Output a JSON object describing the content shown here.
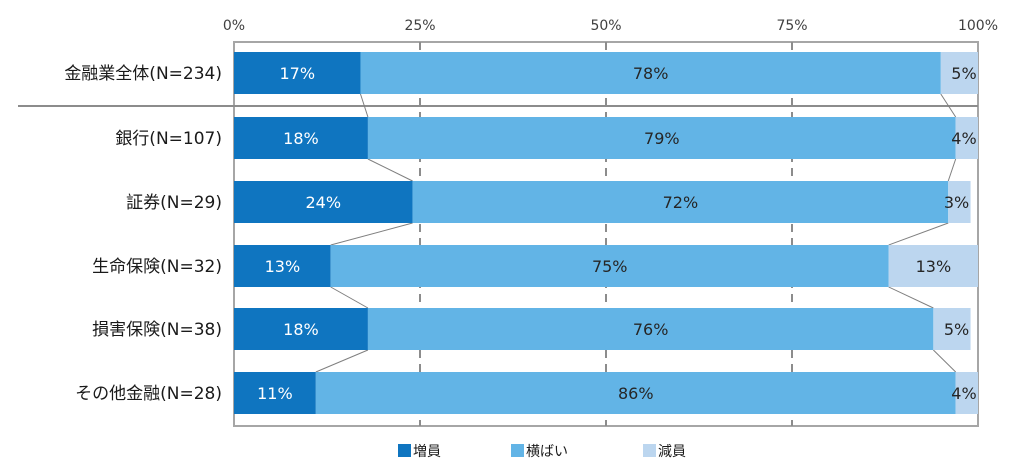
{
  "chart_data": {
    "type": "bar",
    "orientation": "horizontal",
    "stacked": true,
    "percent": true,
    "title": "",
    "xlabel": "",
    "ylabel": "",
    "xlim": [
      0,
      100
    ],
    "x_ticks": [
      "0%",
      "25%",
      "50%",
      "75%",
      "100%"
    ],
    "categories": [
      "金融業全体(N=234)",
      "銀行(N=107)",
      "証券(N=29)",
      "生命保険(N=32)",
      "損害保険(N=38)",
      "その他金融(N=28)"
    ],
    "series": [
      {
        "name": "増員",
        "color": "#0f75c0",
        "values": [
          17,
          18,
          24,
          13,
          18,
          11
        ],
        "labels": [
          "17%",
          "18%",
          "24%",
          "13%",
          "18%",
          "11%"
        ]
      },
      {
        "name": "横ばい",
        "color": "#62b4e6",
        "values": [
          78,
          79,
          72,
          75,
          76,
          86
        ],
        "labels": [
          "78%",
          "79%",
          "72%",
          "75%",
          "76%",
          "86%"
        ]
      },
      {
        "name": "減員",
        "color": "#bcd6ef",
        "values": [
          5,
          4,
          3,
          13,
          5,
          4
        ],
        "labels": [
          "5%",
          "4%",
          "3%",
          "13%",
          "5%",
          "4%"
        ]
      }
    ],
    "grid": true,
    "legend_position": "bottom"
  }
}
